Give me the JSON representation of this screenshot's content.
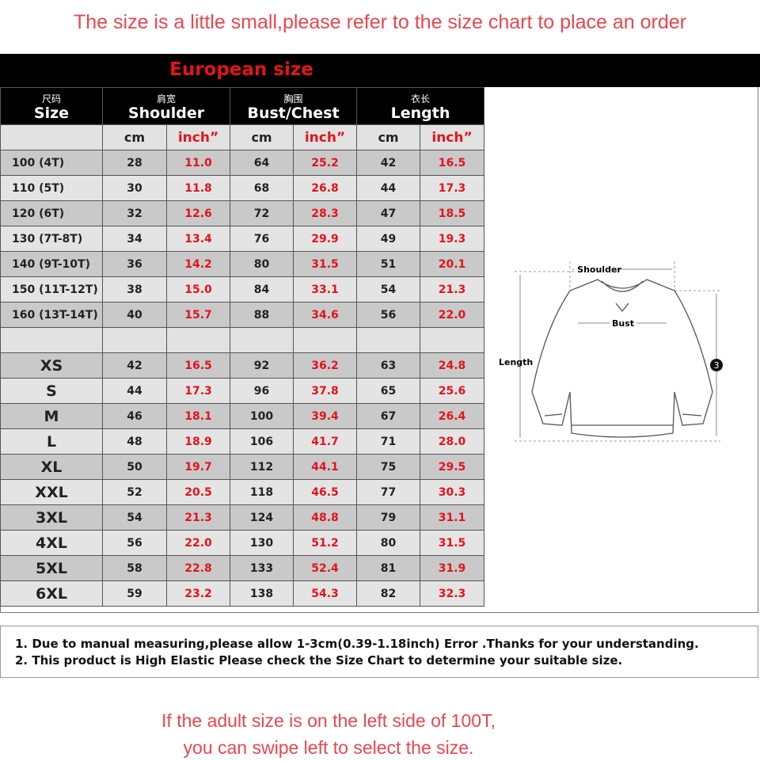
{
  "banner": "The size is a little small,please refer to the size chart to place an order",
  "table_title": "European size",
  "headers": [
    {
      "cn": "尺码",
      "en": "Size"
    },
    {
      "cn": "肩宽",
      "en": "Shoulder"
    },
    {
      "cn": "胸围",
      "en": "Bust/Chest"
    },
    {
      "cn": "衣长",
      "en": "Length"
    }
  ],
  "units": [
    "cm",
    "inch”",
    "cm",
    "inch”",
    "cm",
    "inch”"
  ],
  "kids_rows": [
    [
      "100 (4T)",
      "28",
      "11.0",
      "64",
      "25.2",
      "42",
      "16.5"
    ],
    [
      "110 (5T)",
      "30",
      "11.8",
      "68",
      "26.8",
      "44",
      "17.3"
    ],
    [
      "120 (6T)",
      "32",
      "12.6",
      "72",
      "28.3",
      "47",
      "18.5"
    ],
    [
      "130 (7T-8T)",
      "34",
      "13.4",
      "76",
      "29.9",
      "49",
      "19.3"
    ],
    [
      "140 (9T-10T)",
      "36",
      "14.2",
      "80",
      "31.5",
      "51",
      "20.1"
    ],
    [
      "150 (11T-12T)",
      "38",
      "15.0",
      "84",
      "33.1",
      "54",
      "21.3"
    ],
    [
      "160 (13T-14T)",
      "40",
      "15.7",
      "88",
      "34.6",
      "56",
      "22.0"
    ]
  ],
  "adult_rows": [
    [
      "XS",
      "42",
      "16.5",
      "92",
      "36.2",
      "63",
      "24.8"
    ],
    [
      "S",
      "44",
      "17.3",
      "96",
      "37.8",
      "65",
      "25.6"
    ],
    [
      "M",
      "46",
      "18.1",
      "100",
      "39.4",
      "67",
      "26.4"
    ],
    [
      "L",
      "48",
      "18.9",
      "106",
      "41.7",
      "71",
      "28.0"
    ],
    [
      "XL",
      "50",
      "19.7",
      "112",
      "44.1",
      "75",
      "29.5"
    ],
    [
      "XXL",
      "52",
      "20.5",
      "118",
      "46.5",
      "77",
      "30.3"
    ],
    [
      "3XL",
      "54",
      "21.3",
      "124",
      "48.8",
      "79",
      "31.1"
    ],
    [
      "4XL",
      "56",
      "22.0",
      "130",
      "51.2",
      "80",
      "31.5"
    ],
    [
      "5XL",
      "58",
      "22.8",
      "133",
      "52.4",
      "81",
      "31.9"
    ],
    [
      "6XL",
      "59",
      "23.2",
      "138",
      "54.3",
      "82",
      "32.3"
    ]
  ],
  "diagram": {
    "shoulder": "Shoulder",
    "bust": "Bust",
    "length": "Length",
    "sleeve_marker": "3"
  },
  "notes": [
    "1. Due to manual measuring,please allow 1-3cm(0.39-1.18inch) Error .Thanks for your understanding.",
    "2. This product is High Elastic Please check the Size Chart to determine your suitable size."
  ],
  "footer": [
    "If the adult size is on the left side of 100T,",
    "you can swipe left to select the size."
  ],
  "colors": {
    "red": "#e3141c",
    "header_bg": "#000000",
    "row_dark": "#c9c9c9",
    "row_light": "#e4e4e4"
  }
}
